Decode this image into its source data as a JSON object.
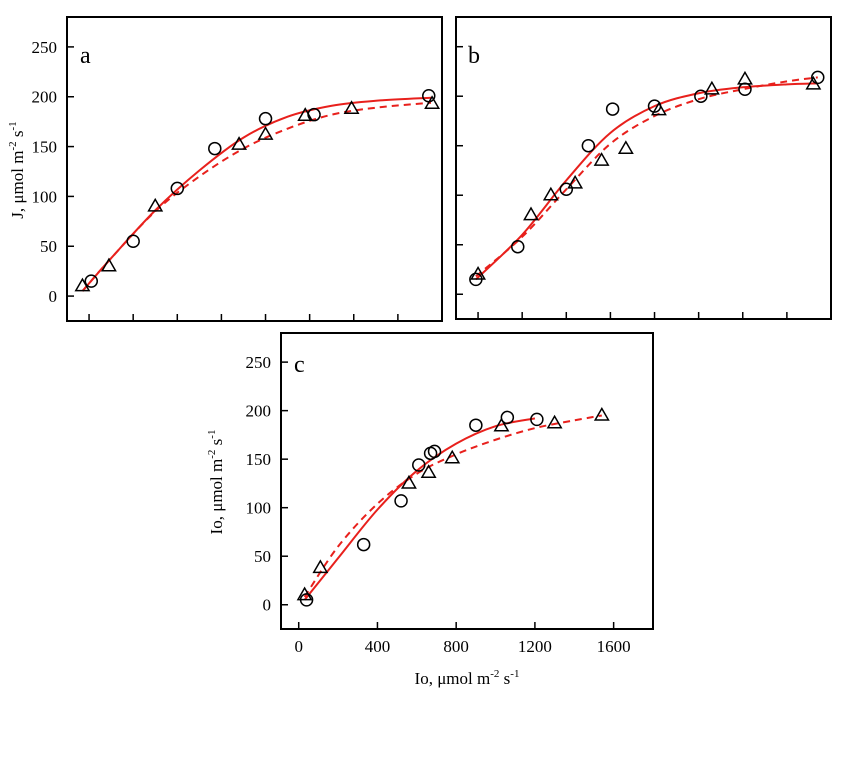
{
  "colors": {
    "fit": "#e8201c",
    "marker": "#000000",
    "frame": "#000000"
  },
  "markers": {
    "series_circle": "circle",
    "series_triangle": "triangle"
  },
  "chart_data": [
    {
      "type": "scatter",
      "panel": "a",
      "title": "",
      "ylabel_parts": {
        "pre": "J, μmol m",
        "e1": "-2",
        "mid": " s",
        "e2": "-1"
      },
      "xlabel": "",
      "xlim": [
        -100,
        1600
      ],
      "ylim": [
        -25,
        280
      ],
      "yticks": [
        0,
        50,
        100,
        150,
        200,
        250
      ],
      "xticks": [
        0,
        200,
        400,
        600,
        800,
        1000,
        1200,
        1400
      ],
      "xtick_labels_shown": false,
      "series": [
        {
          "marker": "circle",
          "x": [
            10,
            200,
            400,
            570,
            800,
            1020,
            1540
          ],
          "y": [
            15,
            55,
            108,
            148,
            178,
            182,
            201
          ]
        },
        {
          "marker": "triangle",
          "x": [
            -30,
            90,
            300,
            680,
            800,
            980,
            1190,
            1555
          ],
          "y": [
            10,
            30,
            90,
            152,
            162,
            181,
            188,
            193
          ]
        }
      ],
      "fits": [
        {
          "style": "solid",
          "x": [
            -30,
            100,
            300,
            500,
            700,
            900,
            1100,
            1300,
            1550
          ],
          "y": [
            5,
            38,
            86,
            126,
            159,
            180,
            191,
            196,
            199
          ]
        },
        {
          "style": "dashed",
          "x": [
            -30,
            100,
            300,
            500,
            700,
            900,
            1100,
            1300,
            1550
          ],
          "y": [
            5,
            38,
            85,
            120,
            148,
            168,
            182,
            189,
            194
          ]
        }
      ]
    },
    {
      "type": "scatter",
      "panel": "b",
      "title": "",
      "xlabel": "",
      "ylabel": "",
      "xlim": [
        -100,
        1600
      ],
      "ylim": [
        -25,
        280
      ],
      "yticks": [
        0,
        50,
        100,
        150,
        200,
        250
      ],
      "xticks": [
        0,
        200,
        400,
        600,
        800,
        1000,
        1200,
        1400
      ],
      "xtick_labels_shown": false,
      "ytick_labels_shown": false,
      "series": [
        {
          "marker": "circle",
          "x": [
            -10,
            180,
            400,
            500,
            610,
            800,
            1010,
            1210,
            1540
          ],
          "y": [
            15,
            48,
            106,
            150,
            187,
            190,
            200,
            207,
            219
          ]
        },
        {
          "marker": "triangle",
          "x": [
            0,
            240,
            330,
            440,
            560,
            670,
            820,
            1060,
            1210,
            1520
          ],
          "y": [
            20,
            80,
            100,
            112,
            135,
            147,
            186,
            207,
            217,
            212
          ]
        }
      ],
      "fits": [
        {
          "style": "solid",
          "x": [
            -10,
            200,
            400,
            600,
            800,
            1000,
            1200,
            1400,
            1540
          ],
          "y": [
            15,
            60,
            115,
            163,
            190,
            203,
            209,
            212,
            213
          ]
        },
        {
          "style": "dashed",
          "x": [
            -10,
            200,
            400,
            600,
            800,
            1000,
            1200,
            1400,
            1540
          ],
          "y": [
            18,
            58,
            106,
            152,
            180,
            197,
            207,
            215,
            219
          ]
        }
      ]
    },
    {
      "type": "scatter",
      "panel": "c",
      "title": "",
      "xlabel_parts": {
        "pre": "Io, μmol m",
        "e1": "-2",
        "mid": " s",
        "e2": "-1"
      },
      "ylabel_parts": {
        "pre": "Io, μmol m",
        "e1": "-2",
        "mid": " s",
        "e2": "-1"
      },
      "xlim": [
        -90,
        1800
      ],
      "ylim": [
        -25,
        280
      ],
      "yticks": [
        0,
        50,
        100,
        150,
        200,
        250
      ],
      "xticks": [
        0,
        400,
        800,
        1200,
        1600
      ],
      "xtick_labels_shown": true,
      "series": [
        {
          "marker": "circle",
          "x": [
            40,
            330,
            520,
            610,
            670,
            690,
            900,
            1060,
            1210
          ],
          "y": [
            5,
            62,
            107,
            144,
            156,
            158,
            185,
            193,
            191
          ]
        },
        {
          "marker": "triangle",
          "x": [
            30,
            110,
            560,
            660,
            780,
            1030,
            1300,
            1540
          ],
          "y": [
            10,
            38,
            125,
            136,
            151,
            184,
            187,
            195
          ]
        }
      ],
      "fits": [
        {
          "style": "solid",
          "x": [
            30,
            200,
            400,
            600,
            800,
            1000,
            1200
          ],
          "y": [
            5,
            48,
            98,
            138,
            166,
            184,
            192
          ]
        },
        {
          "style": "dashed",
          "x": [
            30,
            200,
            400,
            600,
            800,
            1000,
            1200,
            1400,
            1540
          ],
          "y": [
            8,
            60,
            104,
            135,
            155,
            170,
            182,
            190,
            195
          ]
        }
      ]
    }
  ]
}
